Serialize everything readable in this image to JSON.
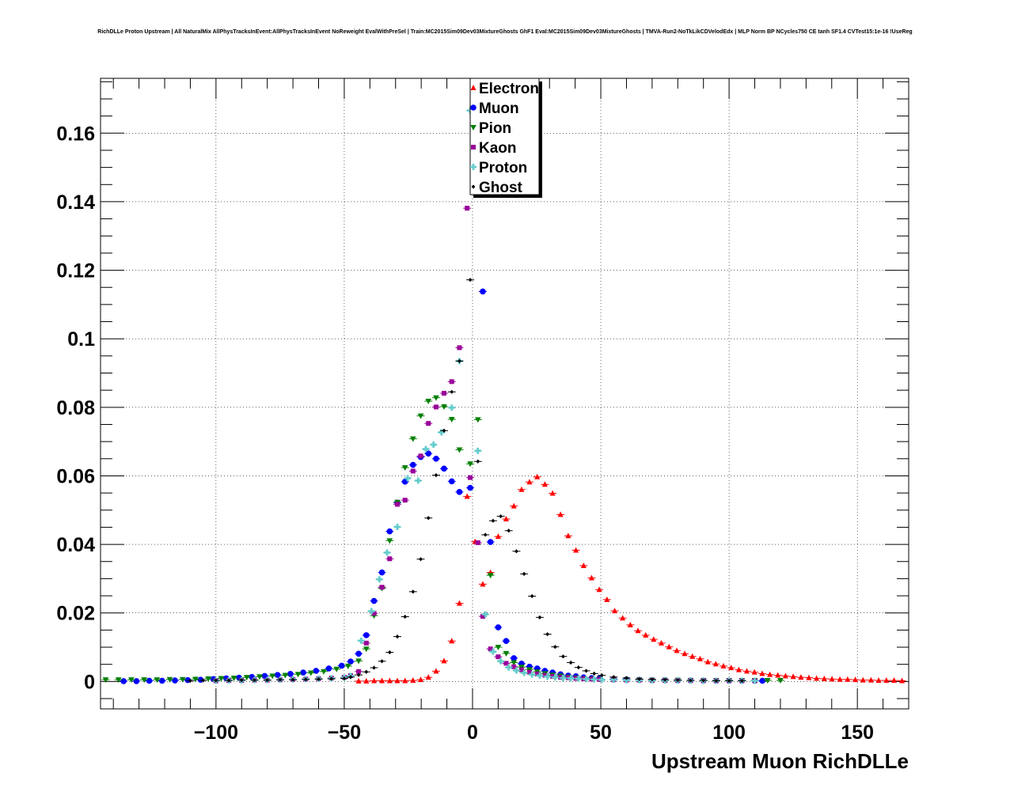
{
  "chart_data": {
    "type": "scatter",
    "title": "RichDLLe Proton Upstream | All NaturalMix AllPhysTracksInEvent:AllPhysTracksInEvent NoReweight EvalWithPreSel | Train:MC2015Sim09Dev03MixtureGhosts GhF1 Eval:MC2015Sim09Dev03MixtureGhosts | TMVA-Run2-NoTkLikCDVelodEdx | MLP Norm BP NCycles750 CE tanh SF1.4 CVTest15:1e-16 !UseReg",
    "xlabel": "Upstream Muon RichDLLe",
    "ylabel": "",
    "xlim": [
      -145,
      170
    ],
    "ylim": [
      -0.008,
      0.176
    ],
    "x_ticks": [
      -100,
      -50,
      0,
      50,
      100,
      150
    ],
    "x_tick_labels": [
      "−100",
      "−50",
      "0",
      "50",
      "100",
      "150"
    ],
    "y_ticks": [
      0,
      0.02,
      0.04,
      0.06,
      0.08,
      0.1,
      0.12,
      0.14,
      0.16
    ],
    "y_tick_labels": [
      "0",
      "0.02",
      "0.04",
      "0.06",
      "0.08",
      "0.1",
      "0.12",
      "0.14",
      "0.16"
    ],
    "grid": true,
    "legend_position": "top-center",
    "series": [
      {
        "name": "Electron",
        "color": "#ff0000",
        "marker": "triangle-up",
        "x": [
          -44.4,
          -41.4,
          -38.4,
          -35.3,
          -32.3,
          -29.3,
          -26.3,
          -23.2,
          -20.2,
          -17.2,
          -14.2,
          -11.1,
          -8.1,
          -5.1,
          -2.1,
          1.0,
          4.0,
          7.0,
          10.0,
          13.1,
          16.1,
          19.1,
          22.2,
          25.2,
          28.2,
          31.2,
          34.3,
          37.3,
          40.3,
          43.3,
          46.4,
          49.4,
          52.4,
          55.4,
          58.5,
          61.5,
          64.5,
          67.5,
          70.6,
          73.6,
          76.6,
          79.6,
          82.7,
          85.7,
          88.7,
          91.7,
          94.8,
          97.8,
          100.8,
          103.8,
          106.9,
          109.9,
          112.9,
          115.9,
          119.0,
          122.0,
          125.0,
          128.0,
          131.1,
          134.1,
          137.1,
          140.1,
          143.2,
          146.2,
          149.2,
          152.2,
          155.3,
          158.3,
          161.3,
          164.3,
          167.4,
          170.4
        ],
        "y": [
          0.0001,
          0.0001,
          0.0002,
          0.0002,
          0.0002,
          0.0002,
          0.0002,
          0.0003,
          0.0005,
          0.0012,
          0.003,
          0.006,
          0.0118,
          0.0228,
          0.054,
          0.0408,
          0.0284,
          0.0318,
          0.0423,
          0.0474,
          0.0512,
          0.056,
          0.0582,
          0.0597,
          0.0575,
          0.0549,
          0.0487,
          0.0425,
          0.0383,
          0.0338,
          0.0302,
          0.0268,
          0.0239,
          0.0206,
          0.0185,
          0.0165,
          0.0148,
          0.0135,
          0.0123,
          0.0112,
          0.0101,
          0.009,
          0.0081,
          0.0073,
          0.0066,
          0.0057,
          0.0051,
          0.0045,
          0.004,
          0.0034,
          0.003,
          0.0027,
          0.0023,
          0.002,
          0.0018,
          0.0016,
          0.0014,
          0.0012,
          0.0011,
          0.0009,
          0.0008,
          0.0007,
          0.0006,
          0.0006,
          0.0005,
          0.0004,
          0.0004,
          0.0003,
          0.0003,
          0.0003,
          0.0002,
          0.0002
        ]
      },
      {
        "name": "Muon",
        "color": "#0000ff",
        "marker": "circle",
        "x": [
          -136,
          -131,
          -126,
          -121,
          -116,
          -111,
          -106,
          -101,
          -96,
          -91,
          -86,
          -81,
          -76,
          -71,
          -66,
          -61,
          -56,
          -51,
          -47.5,
          -44.4,
          -41.4,
          -38.4,
          -35.3,
          -32.3,
          -29.3,
          -26.3,
          -23.2,
          -20.2,
          -17.2,
          -14.2,
          -11.1,
          -8.1,
          -5.1,
          -0.9,
          4.0,
          7.0,
          10.0,
          13.1,
          16.1,
          19.1,
          22.2,
          25.2,
          28.2,
          31.2,
          34.3,
          37.3,
          40.3,
          43.3,
          46.4,
          49.4,
          55,
          60,
          65,
          70,
          75,
          80,
          85,
          90,
          95,
          100,
          105,
          110,
          113
        ],
        "y": [
          0.0001,
          0.0001,
          0.0002,
          0.0002,
          0.0003,
          0.0004,
          0.0005,
          0.0007,
          0.0009,
          0.0011,
          0.0013,
          0.0016,
          0.0019,
          0.0022,
          0.0026,
          0.0031,
          0.0038,
          0.0046,
          0.0058,
          0.0081,
          0.0135,
          0.0235,
          0.0318,
          0.0438,
          0.0522,
          0.0583,
          0.0632,
          0.0655,
          0.0665,
          0.065,
          0.0621,
          0.0584,
          0.0553,
          0.0565,
          0.1138,
          0.0407,
          0.0158,
          0.0118,
          0.0068,
          0.0052,
          0.0043,
          0.0038,
          0.0031,
          0.0026,
          0.0021,
          0.0017,
          0.0015,
          0.0012,
          0.001,
          0.0009,
          0.0007,
          0.0006,
          0.0005,
          0.0004,
          0.0004,
          0.0003,
          0.0003,
          0.0003,
          0.0002,
          0.0002,
          0.0002,
          0.0002,
          0.0002
        ]
      },
      {
        "name": "Pion",
        "color": "#008000",
        "marker": "triangle-down",
        "x": [
          -143,
          -138,
          -133,
          -128,
          -123,
          -118,
          -113,
          -108,
          -103,
          -98,
          -93,
          -88,
          -83,
          -78,
          -73,
          -68,
          -63,
          -58,
          -53,
          -48.5,
          -44.4,
          -41.4,
          -38.4,
          -35.3,
          -32.3,
          -29.3,
          -26.3,
          -23.2,
          -20.2,
          -17.2,
          -14.2,
          -11.1,
          -8.1,
          -5.1,
          -0.9,
          2.1,
          7.0,
          10.0,
          13.1,
          16.1,
          19.1,
          22.2,
          25.2,
          28.2,
          31.2,
          34.3,
          37.3,
          40.3,
          43.3,
          46.4,
          49.4,
          55,
          60,
          65,
          70,
          75,
          80,
          85,
          90,
          95,
          100,
          105,
          110,
          115,
          120
        ],
        "y": [
          0.0005,
          0.0005,
          0.0005,
          0.0005,
          0.0005,
          0.0006,
          0.0006,
          0.0007,
          0.0008,
          0.0009,
          0.001,
          0.0012,
          0.0014,
          0.0016,
          0.0018,
          0.0021,
          0.0025,
          0.0029,
          0.0036,
          0.0045,
          0.006,
          0.0095,
          0.0192,
          0.0272,
          0.0411,
          0.0523,
          0.0624,
          0.0708,
          0.0775,
          0.0818,
          0.0828,
          0.0802,
          0.0765,
          0.0676,
          0.0635,
          0.0764,
          0.031,
          0.01,
          0.0082,
          0.0055,
          0.0042,
          0.0035,
          0.0028,
          0.0023,
          0.0019,
          0.0016,
          0.0013,
          0.0011,
          0.0009,
          0.0008,
          0.0007,
          0.0006,
          0.0005,
          0.0005,
          0.0004,
          0.0004,
          0.0004,
          0.0003,
          0.0003,
          0.0003,
          0.0003,
          0.0003,
          0.0003,
          0.0003,
          0.0003
        ]
      },
      {
        "name": "Kaon",
        "color": "#990099",
        "marker": "square",
        "x": [
          -100,
          -95,
          -90,
          -85,
          -80,
          -75,
          -70,
          -65,
          -60,
          -55,
          -50,
          -47.5,
          -44.4,
          -41.4,
          -38.4,
          -35.3,
          -32.3,
          -29.3,
          -26.3,
          -23.2,
          -20.2,
          -17.2,
          -14.2,
          -11.1,
          -8.1,
          -5.1,
          -2.1,
          -0.9,
          2.1,
          4.0,
          7.0,
          10.0,
          13.1,
          16.1,
          19.1,
          22.2,
          25.2,
          28.2,
          31.2,
          34.3,
          37.3,
          40.3,
          43.3,
          46.4,
          49.4,
          55,
          60,
          65,
          70,
          75,
          80,
          85,
          90,
          95,
          100,
          105,
          110
        ],
        "y": [
          0.0002,
          0.0003,
          0.0003,
          0.0004,
          0.0004,
          0.0005,
          0.0006,
          0.0007,
          0.0008,
          0.001,
          0.0012,
          0.0017,
          0.0029,
          0.0112,
          0.0199,
          0.0275,
          0.0358,
          0.0517,
          0.0529,
          0.0614,
          0.0658,
          0.0753,
          0.0801,
          0.0841,
          0.0875,
          0.0974,
          0.1381,
          0.0595,
          0.0405,
          0.019,
          0.0095,
          0.0072,
          0.0053,
          0.0043,
          0.0034,
          0.0027,
          0.0022,
          0.0018,
          0.0015,
          0.0012,
          0.0011,
          0.0009,
          0.0008,
          0.0007,
          0.0006,
          0.0005,
          0.0004,
          0.0004,
          0.0003,
          0.0003,
          0.0003,
          0.0003,
          0.0002,
          0.0002,
          0.0002,
          0.0002,
          0.0002
        ]
      },
      {
        "name": "Proton",
        "color": "#66cccc",
        "marker": "cross",
        "x": [
          -100,
          -95,
          -90,
          -85,
          -80,
          -75,
          -70,
          -65,
          -60,
          -55,
          -50,
          -47.5,
          -43.4,
          -39.4,
          -36.3,
          -33.3,
          -29.3,
          -25.3,
          -21.2,
          -18.2,
          -15.2,
          -12.1,
          -8.1,
          -5.1,
          -0.9,
          2.1,
          5.0,
          8.0,
          11.0,
          14.1,
          17.1,
          20.1,
          23.2,
          26.2,
          29.2,
          32.2,
          35.3,
          38.3,
          41.3,
          44.3,
          47.4,
          50.4,
          55,
          60,
          65,
          70,
          75,
          80,
          85,
          90,
          95,
          100,
          105,
          110
        ],
        "y": [
          0.0002,
          0.0003,
          0.0003,
          0.0004,
          0.0004,
          0.0005,
          0.0006,
          0.0007,
          0.0008,
          0.0009,
          0.0011,
          0.0016,
          0.0119,
          0.0205,
          0.0298,
          0.0376,
          0.0451,
          0.0593,
          0.0586,
          0.0678,
          0.0691,
          0.0727,
          0.0799,
          0.0935,
          0.1666,
          0.0673,
          0.0196,
          0.0087,
          0.0059,
          0.0041,
          0.0032,
          0.0025,
          0.002,
          0.0017,
          0.0014,
          0.0012,
          0.001,
          0.0009,
          0.0008,
          0.0007,
          0.0006,
          0.0005,
          0.0005,
          0.0004,
          0.0004,
          0.0003,
          0.0003,
          0.0003,
          0.0003,
          0.0002,
          0.0002,
          0.0002,
          0.0002,
          0.0002
        ]
      },
      {
        "name": "Ghost",
        "color": "#000000",
        "marker": "diamond-small",
        "x": [
          -110,
          -105,
          -100,
          -95,
          -90,
          -85,
          -80,
          -75,
          -70,
          -65,
          -60,
          -55,
          -50,
          -47.5,
          -44.4,
          -41.4,
          -38.4,
          -35.3,
          -32.3,
          -29.3,
          -26.3,
          -23.2,
          -20.2,
          -17.2,
          -14.2,
          -11.1,
          -8.1,
          -5.1,
          -0.9,
          2.1,
          5.0,
          8.0,
          11.0,
          14.1,
          17.1,
          20.1,
          23.2,
          26.2,
          29.2,
          32.2,
          35.3,
          38.3,
          41.3,
          44.3,
          47.4,
          50.4,
          55,
          60,
          65,
          70,
          75,
          80,
          85,
          90,
          95,
          100,
          105
        ],
        "y": [
          0.0002,
          0.0003,
          0.0003,
          0.0003,
          0.0004,
          0.0004,
          0.0004,
          0.0005,
          0.0005,
          0.0006,
          0.0007,
          0.0008,
          0.0009,
          0.0013,
          0.0019,
          0.0028,
          0.004,
          0.0059,
          0.0085,
          0.0131,
          0.0189,
          0.0262,
          0.0357,
          0.0477,
          0.0602,
          0.0732,
          0.0845,
          0.0935,
          0.1172,
          0.0642,
          0.0428,
          0.0469,
          0.0482,
          0.044,
          0.038,
          0.0314,
          0.0249,
          0.0187,
          0.0138,
          0.0101,
          0.0073,
          0.0055,
          0.0041,
          0.0031,
          0.0023,
          0.0018,
          0.0013,
          0.001,
          0.0007,
          0.0006,
          0.0005,
          0.0004,
          0.0003,
          0.0003,
          0.0002,
          0.0002,
          0.0002
        ]
      }
    ]
  }
}
